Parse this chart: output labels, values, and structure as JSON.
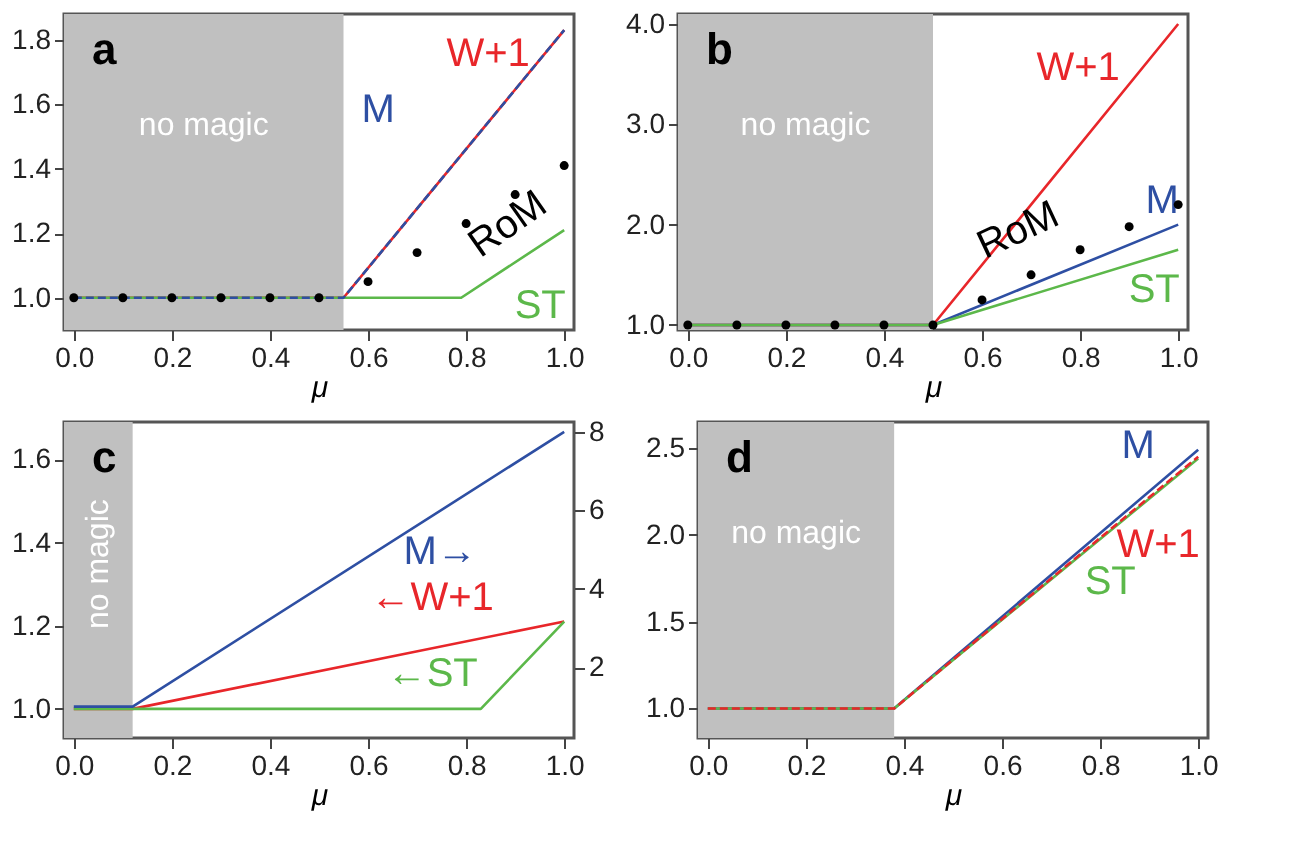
{
  "chart_data": [
    {
      "type": "line",
      "xlabel": "μ",
      "annotations": [
        "a"
      ],
      "grid": false,
      "marker": "none",
      "xlim": [
        -0.02,
        1.02
      ],
      "xticks": [
        {
          "value": 0,
          "label": "0.0"
        },
        {
          "value": 0.2,
          "label": "0.2"
        },
        {
          "value": 0.4,
          "label": "0.4"
        },
        {
          "value": 0.6,
          "label": "0.6"
        },
        {
          "value": 0.8,
          "label": "0.8"
        },
        {
          "value": 1,
          "label": "1.0"
        }
      ],
      "ylim": [
        0.9,
        1.88
      ],
      "yticks": [
        {
          "value": 1,
          "label": "1.0"
        },
        {
          "value": 1.2,
          "label": "1.2"
        },
        {
          "value": 1.4,
          "label": "1.4"
        },
        {
          "value": 1.6,
          "label": "1.6"
        },
        {
          "value": 1.8,
          "label": "1.8"
        }
      ],
      "bands": [
        {
          "axis": "x",
          "from": -0.02,
          "to": 0.55,
          "label": "no magic",
          "color": "#c0c0c0"
        }
      ],
      "series": [
        {
          "name": "W+1",
          "color": "#e8262a",
          "x": [
            0,
            0.55,
            1
          ],
          "values": [
            1,
            1,
            1.83
          ],
          "line_style": "solid"
        },
        {
          "name": "M",
          "color": "#2e4fa3",
          "x": [
            0,
            0.55,
            1
          ],
          "values": [
            1,
            1,
            1.83
          ],
          "line_style": "dashed"
        },
        {
          "name": "RoM",
          "type": "scatter",
          "marker": "circle",
          "color": "#000000",
          "x": [
            0,
            0.1,
            0.2,
            0.3,
            0.4,
            0.5,
            0.6,
            0.7,
            0.8,
            0.9,
            1
          ],
          "values": [
            1,
            1,
            1,
            1,
            1,
            1,
            1.05,
            1.14,
            1.23,
            1.32,
            1.41
          ]
        },
        {
          "name": "ST",
          "color": "#5cb84a",
          "x": [
            0,
            0.55,
            0.79,
            1
          ],
          "values": [
            1,
            1,
            1,
            1.21
          ],
          "line_style": "solid"
        }
      ]
    },
    {
      "type": "line",
      "xlabel": "μ",
      "annotations": [
        "b"
      ],
      "grid": false,
      "marker": "none",
      "xlim": [
        -0.02,
        1.02
      ],
      "xticks": [
        {
          "value": 0,
          "label": "0.0"
        },
        {
          "value": 0.2,
          "label": "0.2"
        },
        {
          "value": 0.4,
          "label": "0.4"
        },
        {
          "value": 0.6,
          "label": "0.6"
        },
        {
          "value": 0.8,
          "label": "0.8"
        },
        {
          "value": 1,
          "label": "1.0"
        }
      ],
      "ylim": [
        0.95,
        4.1
      ],
      "yticks": [
        {
          "value": 1,
          "label": "1.0"
        },
        {
          "value": 2,
          "label": "2.0"
        },
        {
          "value": 3,
          "label": "3.0"
        },
        {
          "value": 4,
          "label": "4.0"
        }
      ],
      "bands": [
        {
          "axis": "x",
          "from": -0.02,
          "to": 0.5,
          "label": "no magic",
          "color": "#c0c0c0"
        }
      ],
      "series": [
        {
          "name": "W+1",
          "color": "#e8262a",
          "x": [
            0,
            0.5,
            1
          ],
          "values": [
            1,
            1,
            4.0
          ],
          "line_style": "solid"
        },
        {
          "name": "M",
          "color": "#2e4fa3",
          "x": [
            0,
            0.5,
            1
          ],
          "values": [
            1,
            1,
            2.0
          ],
          "line_style": "solid"
        },
        {
          "name": "RoM",
          "type": "scatter",
          "marker": "circle",
          "color": "#000000",
          "x": [
            0,
            0.1,
            0.2,
            0.3,
            0.4,
            0.5,
            0.6,
            0.7,
            0.8,
            0.9,
            1
          ],
          "values": [
            1,
            1,
            1,
            1,
            1,
            1,
            1.25,
            1.5,
            1.75,
            1.98,
            2.2
          ]
        },
        {
          "name": "ST",
          "color": "#5cb84a",
          "x": [
            0,
            0.5,
            1
          ],
          "values": [
            1,
            1,
            1.75
          ],
          "line_style": "solid"
        }
      ]
    },
    {
      "type": "line",
      "xlabel": "μ",
      "annotations": [
        "c"
      ],
      "grid": false,
      "marker": "none",
      "xlim": [
        -0.02,
        1.02
      ],
      "xticks": [
        {
          "value": 0,
          "label": "0.0"
        },
        {
          "value": 0.2,
          "label": "0.2"
        },
        {
          "value": 0.4,
          "label": "0.4"
        },
        {
          "value": 0.6,
          "label": "0.6"
        },
        {
          "value": 0.8,
          "label": "0.8"
        },
        {
          "value": 1,
          "label": "1.0"
        }
      ],
      "ylim": [
        0.93,
        1.69
      ],
      "yticks": [
        {
          "value": 1,
          "label": "1.0"
        },
        {
          "value": 1.2,
          "label": "1.2"
        },
        {
          "value": 1.4,
          "label": "1.4"
        },
        {
          "value": 1.6,
          "label": "1.6"
        }
      ],
      "y2lim": [
        0.2,
        8.25
      ],
      "y2ticks": [
        2,
        4,
        6,
        8
      ],
      "bands": [
        {
          "axis": "x",
          "from": -0.02,
          "to": 0.12,
          "label": "no magic",
          "color": "#c0c0c0"
        }
      ],
      "series": [
        {
          "name": "←W+1",
          "color": "#e8262a",
          "x": [
            0,
            0.12,
            1
          ],
          "values": [
            1,
            1,
            1.21
          ],
          "line_style": "solid"
        },
        {
          "name": "M→",
          "color": "#2e4fa3",
          "axis": "y2",
          "x": [
            0,
            0.12,
            1
          ],
          "values": [
            1,
            1,
            8.0
          ],
          "line_style": "solid"
        },
        {
          "name": "←ST",
          "color": "#5cb84a",
          "x": [
            0,
            0.12,
            0.83,
            1
          ],
          "values": [
            1,
            1,
            1,
            1.21
          ],
          "line_style": "solid"
        }
      ]
    },
    {
      "type": "line",
      "xlabel": "μ",
      "annotations": [
        "d"
      ],
      "grid": false,
      "marker": "none",
      "xlim": [
        -0.02,
        1.02
      ],
      "xticks": [
        {
          "value": 0,
          "label": "0.0"
        },
        {
          "value": 0.2,
          "label": "0.2"
        },
        {
          "value": 0.4,
          "label": "0.4"
        },
        {
          "value": 0.6,
          "label": "0.6"
        },
        {
          "value": 0.8,
          "label": "0.8"
        },
        {
          "value": 1,
          "label": "1.0"
        }
      ],
      "ylim": [
        0.83,
        2.65
      ],
      "yticks": [
        {
          "value": 1,
          "label": "1.0"
        },
        {
          "value": 1.5,
          "label": "1.5"
        },
        {
          "value": 2,
          "label": "2.0"
        },
        {
          "value": 2.5,
          "label": "2.5"
        }
      ],
      "bands": [
        {
          "axis": "x",
          "from": -0.02,
          "to": 0.38,
          "label": "no magic",
          "color": "#c0c0c0"
        }
      ],
      "series": [
        {
          "name": "M",
          "color": "#2e4fa3",
          "x": [
            0,
            0.38,
            1
          ],
          "values": [
            1,
            1,
            2.49
          ],
          "line_style": "solid"
        },
        {
          "name": "W+1",
          "color": "#e8262a",
          "x": [
            0,
            0.38,
            1
          ],
          "values": [
            1,
            1,
            2.45
          ],
          "line_style": "dashed"
        },
        {
          "name": "ST",
          "color": "#5cb84a",
          "x": [
            0,
            0.38,
            1
          ],
          "values": [
            1,
            1,
            2.44
          ],
          "line_style": "solid"
        }
      ]
    }
  ]
}
